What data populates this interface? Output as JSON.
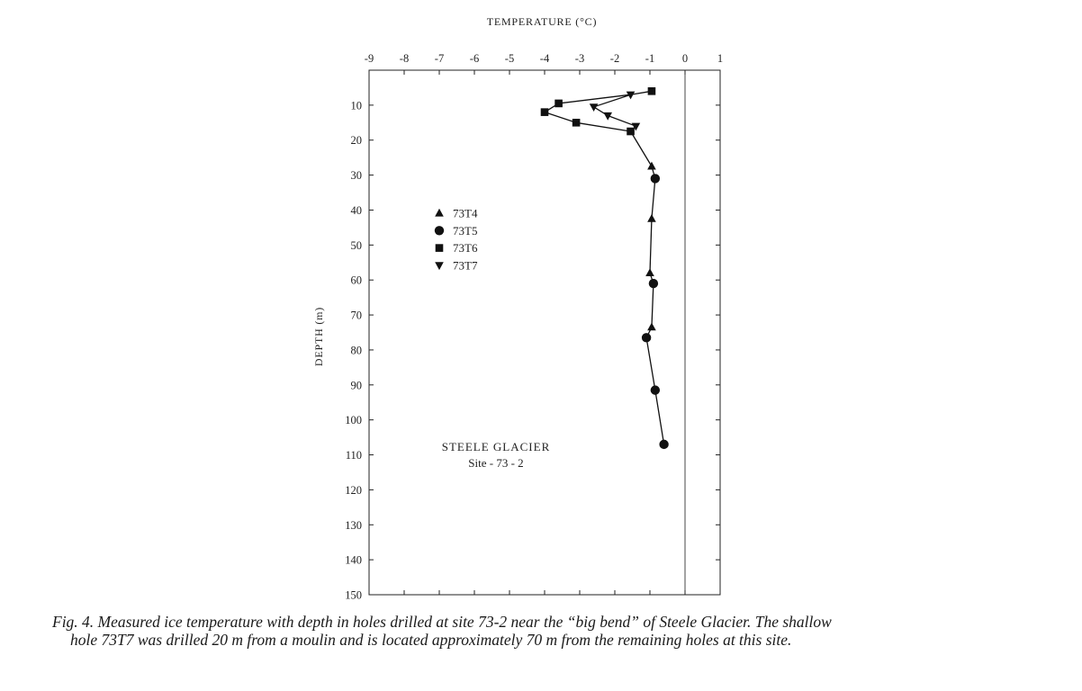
{
  "chart_data": {
    "type": "scatter",
    "title": "",
    "xlabel": "TEMPERATURE (°C)",
    "ylabel": "DEPTH (m)",
    "xlim": [
      -9,
      1
    ],
    "ylim": [
      150,
      0
    ],
    "x_ticks": [
      -9,
      -8,
      -7,
      -6,
      -5,
      -4,
      -3,
      -2,
      -1,
      0,
      1
    ],
    "y_ticks": [
      10,
      20,
      30,
      40,
      50,
      60,
      70,
      80,
      90,
      100,
      110,
      120,
      130,
      140,
      150
    ],
    "x_axis_position": "top",
    "y_axis_reversed": true,
    "grid": false,
    "reference_line_x": 0,
    "legend_position": "left-center",
    "series": [
      {
        "name": "73T4",
        "marker": "triangle-up",
        "points": [
          [
            -0.95,
            27.5
          ],
          [
            -0.95,
            42.5
          ],
          [
            -1.0,
            58
          ],
          [
            -0.95,
            73.5
          ]
        ]
      },
      {
        "name": "73T5",
        "marker": "circle",
        "points": [
          [
            -0.85,
            31
          ],
          [
            -0.9,
            61
          ],
          [
            -1.1,
            76.5
          ],
          [
            -0.85,
            91.5
          ],
          [
            -0.6,
            107
          ]
        ]
      },
      {
        "name": "73T6",
        "marker": "square",
        "points": [
          [
            -0.95,
            6
          ],
          [
            -3.6,
            9.5
          ],
          [
            -4.0,
            12
          ],
          [
            -3.1,
            15
          ],
          [
            -1.55,
            17.5
          ]
        ]
      },
      {
        "name": "73T7",
        "marker": "triangle-down",
        "points": [
          [
            -1.55,
            7
          ],
          [
            -2.6,
            10.5
          ],
          [
            -2.2,
            13
          ],
          [
            -1.4,
            16
          ]
        ]
      }
    ],
    "profile_line": [
      [
        -0.95,
        6
      ],
      [
        -1.55,
        7
      ],
      [
        -3.6,
        9.5
      ],
      [
        -4.0,
        12
      ],
      [
        -3.1,
        15
      ],
      [
        -1.55,
        17.5
      ],
      [
        -0.95,
        27.5
      ],
      [
        -0.85,
        31
      ],
      [
        -0.95,
        42.5
      ],
      [
        -1.0,
        58
      ],
      [
        -0.9,
        61
      ],
      [
        -0.95,
        73.5
      ],
      [
        -1.1,
        76.5
      ],
      [
        -0.85,
        91.5
      ],
      [
        -0.6,
        107
      ]
    ],
    "t7_line": [
      [
        -1.55,
        7
      ],
      [
        -2.6,
        10.5
      ],
      [
        -2.2,
        13
      ],
      [
        -1.4,
        16
      ],
      [
        -1.55,
        17.5
      ]
    ],
    "annotation": {
      "line1": "STEELE GLACIER",
      "line2": "Site - 73 - 2"
    }
  },
  "caption": {
    "line1": "Fig. 4.  Measured ice temperature with depth in holes drilled at site 73-2 near the “big bend” of Steele Glacier.  The shallow",
    "line2": "hole 73T7 was drilled 20 m from a moulin and is located approximately 70 m from the remaining holes at this site."
  }
}
